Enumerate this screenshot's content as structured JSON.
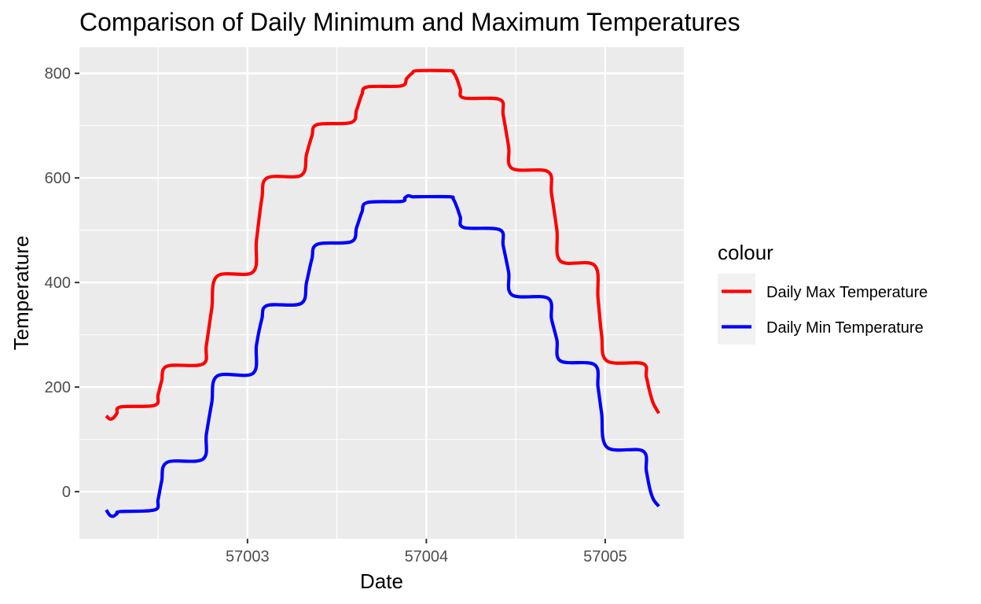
{
  "chart_data": {
    "type": "line",
    "title": "Comparison of Daily Minimum and Maximum Temperatures",
    "xlabel": "Date",
    "ylabel": "Temperature",
    "xlim": [
      57002.06,
      57005.44
    ],
    "ylim": [
      -90,
      850
    ],
    "x_ticks": [
      57003,
      57004,
      57005
    ],
    "y_ticks": [
      0,
      200,
      400,
      600,
      800
    ],
    "grid": true,
    "legend": {
      "title": "colour",
      "position": "right",
      "entries": [
        {
          "label": "Daily Max Temperature",
          "color": "#ff0000"
        },
        {
          "label": "Daily Min Temperature",
          "color": "#0000ff"
        }
      ]
    },
    "series": [
      {
        "name": "Daily Max Temperature",
        "color": "#ff0000",
        "x": [
          57002.21,
          57002.23,
          57002.25,
          57002.27,
          57002.29,
          57002.48,
          57002.5,
          57002.52,
          57002.55,
          57002.75,
          57002.77,
          57002.8,
          57002.83,
          57003.03,
          57003.05,
          57003.08,
          57003.11,
          57003.3,
          57003.33,
          57003.36,
          57003.39,
          57003.58,
          57003.61,
          57003.64,
          57003.67,
          57003.86,
          57003.89,
          57003.92,
          57003.95,
          57004.13,
          57004.15,
          57004.17,
          57004.19,
          57004.21,
          57004.41,
          57004.43,
          57004.46,
          57004.48,
          57004.68,
          57004.7,
          57004.73,
          57004.75,
          57004.94,
          57004.96,
          57004.98,
          57005.01,
          57005.21,
          57005.23,
          57005.25,
          57005.27,
          57005.3
        ],
        "y": [
          145,
          139,
          141,
          150,
          162,
          165,
          185,
          212,
          240,
          244,
          280,
          350,
          412,
          420,
          480,
          560,
          600,
          605,
          645,
          680,
          702,
          706,
          730,
          760,
          774,
          776,
          790,
          800,
          805,
          805,
          802,
          790,
          770,
          753,
          750,
          720,
          660,
          618,
          612,
          570,
          500,
          441,
          433,
          370,
          300,
          250,
          245,
          220,
          190,
          168,
          150
        ]
      },
      {
        "name": "Daily Min Temperature",
        "color": "#0000ff",
        "x": [
          57002.21,
          57002.23,
          57002.25,
          57002.27,
          57002.29,
          57002.48,
          57002.5,
          57002.52,
          57002.55,
          57002.75,
          57002.77,
          57002.8,
          57002.83,
          57003.03,
          57003.05,
          57003.08,
          57003.11,
          57003.3,
          57003.33,
          57003.36,
          57003.39,
          57003.58,
          57003.61,
          57003.64,
          57003.67,
          57003.86,
          57003.88,
          57003.9,
          57003.92,
          57003.95,
          57004.13,
          57004.15,
          57004.17,
          57004.19,
          57004.21,
          57004.41,
          57004.43,
          57004.46,
          57004.48,
          57004.68,
          57004.7,
          57004.73,
          57004.75,
          57004.94,
          57004.96,
          57004.98,
          57005.01,
          57005.21,
          57005.23,
          57005.25,
          57005.27,
          57005.3
        ],
        "y": [
          -35,
          -45,
          -47,
          -42,
          -38,
          -35,
          -15,
          20,
          56,
          62,
          110,
          170,
          221,
          226,
          280,
          330,
          356,
          360,
          400,
          445,
          473,
          478,
          505,
          535,
          553,
          555,
          562,
          566,
          564,
          564,
          564,
          560,
          545,
          525,
          505,
          501,
          470,
          420,
          376,
          370,
          330,
          290,
          250,
          243,
          200,
          150,
          85,
          78,
          40,
          5,
          -15,
          -28
        ]
      }
    ]
  }
}
